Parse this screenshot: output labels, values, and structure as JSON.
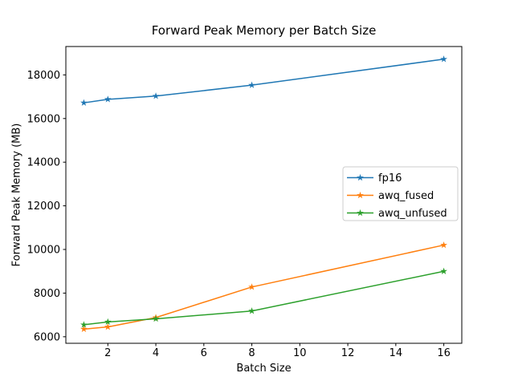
{
  "chart_data": {
    "type": "line",
    "title": "Forward Peak Memory per Batch Size",
    "xlabel": "Batch Size",
    "ylabel": "Forward Peak Memory (MB)",
    "x": [
      1,
      2,
      4,
      8,
      16
    ],
    "series": [
      {
        "name": "fp16",
        "color": "#1f77b4",
        "values": [
          16720,
          16880,
          17030,
          17530,
          18720
        ]
      },
      {
        "name": "awq_fused",
        "color": "#ff7f0e",
        "values": [
          6350,
          6450,
          6880,
          8280,
          10200
        ]
      },
      {
        "name": "awq_unfused",
        "color": "#2ca02c",
        "values": [
          6550,
          6680,
          6820,
          7180,
          9000
        ]
      }
    ],
    "xlim": [
      0.25,
      16.75
    ],
    "ylim": [
      5700,
      19300
    ],
    "xticks": [
      2,
      4,
      6,
      8,
      10,
      12,
      14,
      16
    ],
    "yticks": [
      6000,
      8000,
      10000,
      12000,
      14000,
      16000,
      18000
    ],
    "grid": false,
    "legend_position": "center right",
    "marker": "star",
    "line_width": 1.5,
    "axis_color": "#000000",
    "legend_border_color": "#cccccc",
    "background_color": "#ffffff"
  }
}
